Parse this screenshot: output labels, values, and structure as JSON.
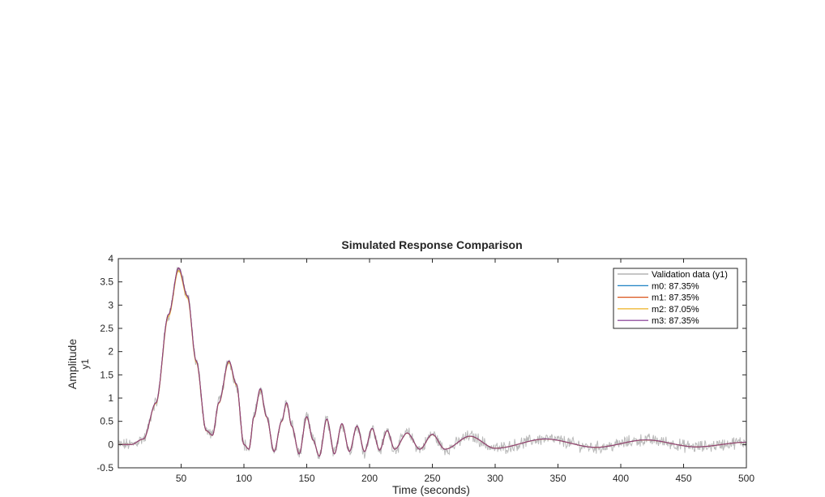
{
  "chart_data": {
    "type": "line",
    "title": "Simulated Response Comparison",
    "xlabel": "Time (seconds)",
    "ylabel": "Amplitude",
    "ylabel_sub": "y1",
    "xlim": [
      0,
      500
    ],
    "ylim": [
      -0.5,
      4
    ],
    "xticks": [
      50,
      100,
      150,
      200,
      250,
      300,
      350,
      400,
      450,
      500
    ],
    "yticks": [
      -0.5,
      0,
      0.5,
      1,
      1.5,
      2,
      2.5,
      3,
      3.5,
      4
    ],
    "grid": false,
    "legend_position": "top-right",
    "series": [
      {
        "name": "Validation data (y1)",
        "color": "#b3b3b3",
        "kind": "noisy"
      },
      {
        "name": "m0: 87.35%",
        "color": "#0072bd",
        "kind": "model"
      },
      {
        "name": "m1: 87.35%",
        "color": "#d95319",
        "kind": "model"
      },
      {
        "name": "m2: 87.05%",
        "color": "#edb120",
        "kind": "model"
      },
      {
        "name": "m3: 87.35%",
        "color": "#7e2f8e",
        "kind": "model"
      }
    ],
    "response_keypoints": {
      "x": [
        0,
        10,
        20,
        30,
        40,
        48,
        55,
        62,
        70,
        75,
        80,
        88,
        94,
        100,
        104,
        108,
        113,
        118,
        124,
        130,
        134,
        138,
        144,
        150,
        155,
        160,
        166,
        172,
        178,
        184,
        190,
        196,
        202,
        208,
        214,
        220,
        230,
        240,
        250,
        260,
        280,
        300,
        340,
        380,
        420,
        460,
        500
      ],
      "y": [
        0.0,
        0.0,
        0.12,
        0.9,
        2.8,
        3.8,
        3.2,
        1.8,
        0.3,
        0.2,
        0.9,
        1.8,
        1.3,
        0.0,
        -0.1,
        0.6,
        1.2,
        0.6,
        -0.15,
        0.5,
        0.9,
        0.4,
        -0.2,
        0.6,
        0.1,
        -0.25,
        0.55,
        -0.2,
        0.45,
        -0.15,
        0.4,
        -0.15,
        0.35,
        -0.12,
        0.3,
        -0.1,
        0.25,
        -0.1,
        0.22,
        -0.1,
        0.18,
        -0.08,
        0.12,
        -0.06,
        0.1,
        -0.05,
        0.05
      ]
    }
  }
}
